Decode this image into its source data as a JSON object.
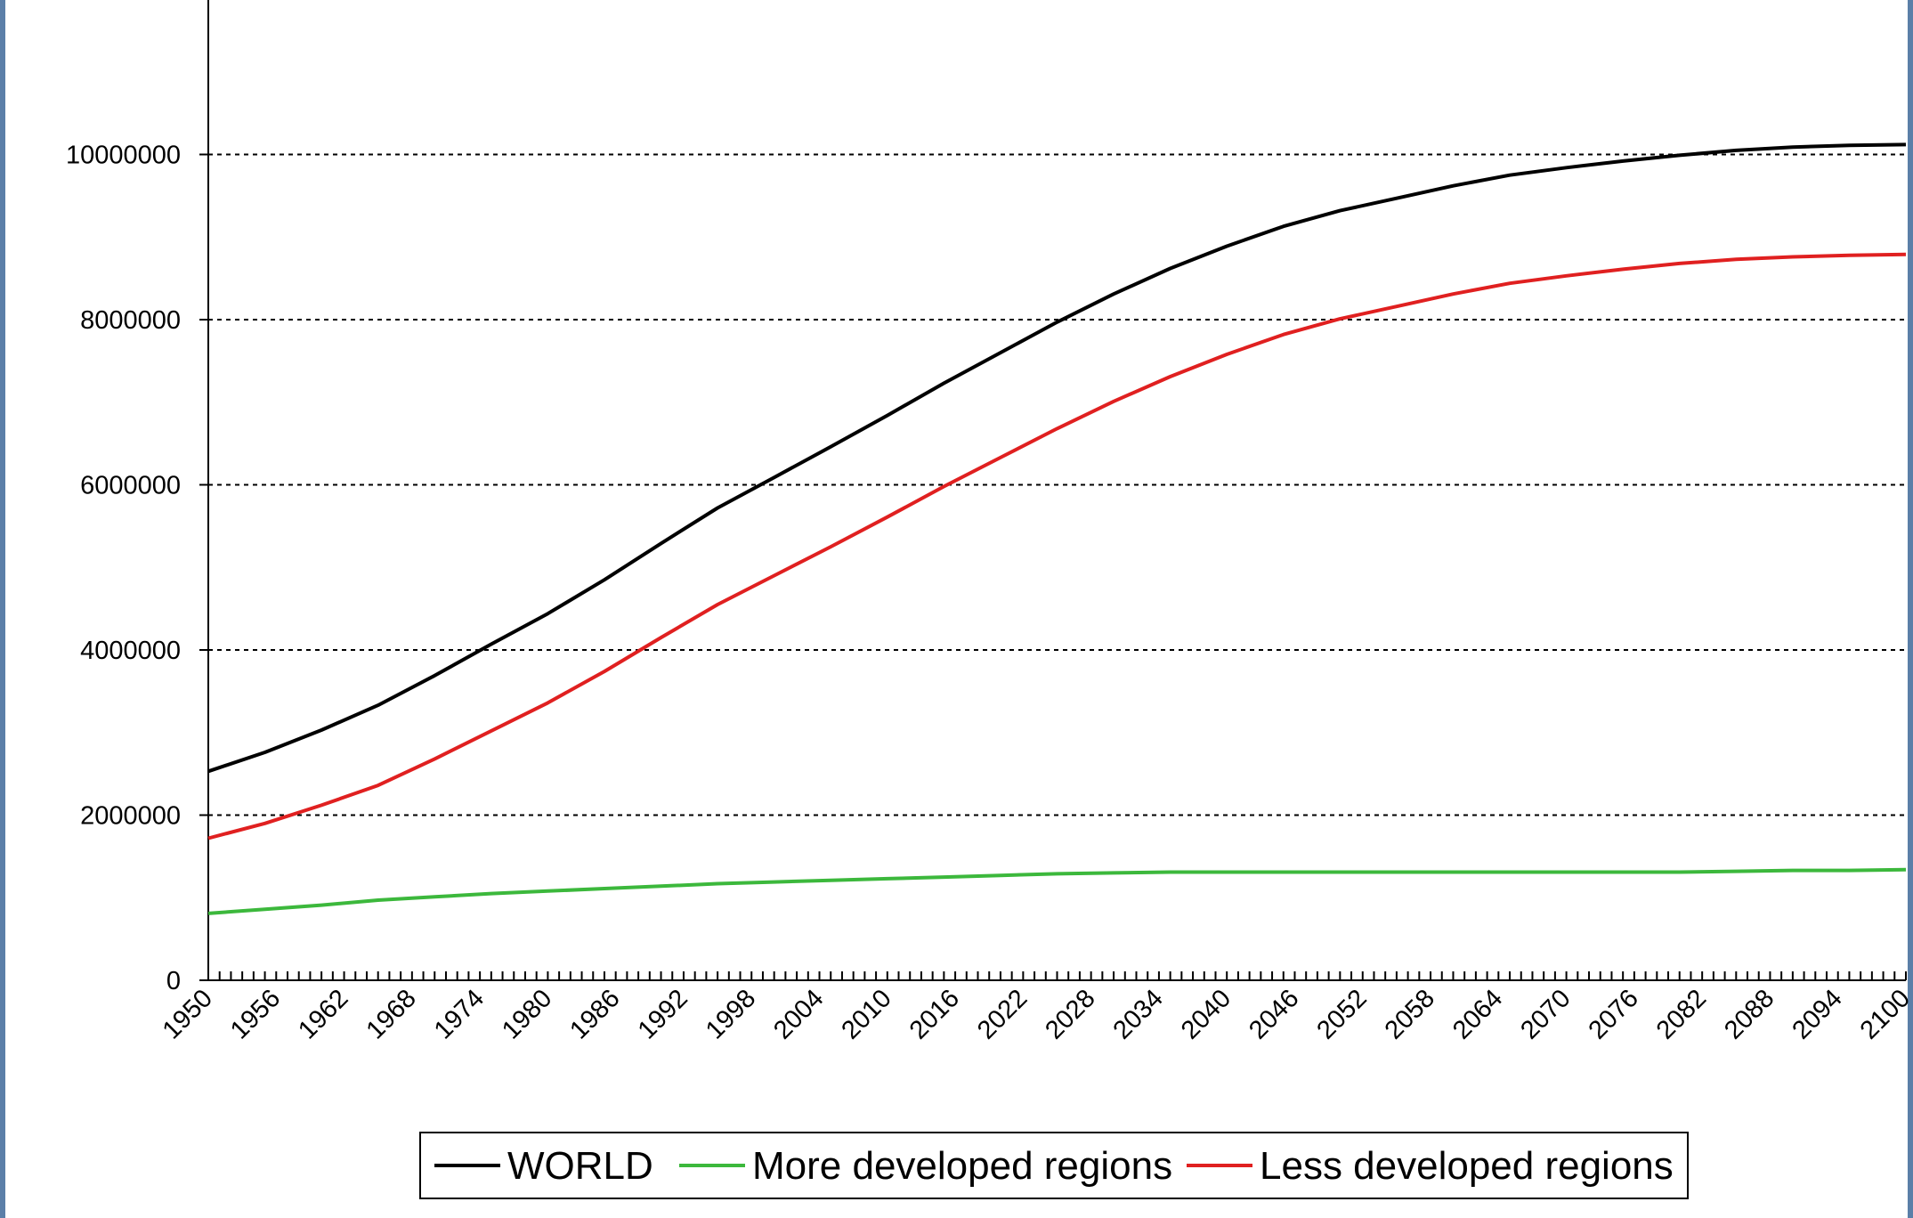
{
  "chart_data": {
    "type": "line",
    "title": "",
    "xlabel": "",
    "ylabel": "",
    "ylim": [
      0,
      12000000
    ],
    "xlim": [
      1950,
      2100
    ],
    "grid": true,
    "legend_position": "bottom",
    "y_ticks": [
      "0",
      "2000000",
      "4000000",
      "6000000",
      "8000000",
      "10000000"
    ],
    "x_ticks": [
      "1950",
      "1956",
      "1962",
      "1968",
      "1974",
      "1980",
      "1986",
      "1992",
      "1998",
      "2004",
      "2010",
      "2016",
      "2022",
      "2028",
      "2034",
      "2040",
      "2046",
      "2052",
      "2058",
      "2064",
      "2070",
      "2076",
      "2082",
      "2088",
      "2094",
      "2100"
    ],
    "x": [
      1950,
      1955,
      1960,
      1965,
      1970,
      1975,
      1980,
      1985,
      1990,
      1995,
      2000,
      2005,
      2010,
      2015,
      2020,
      2025,
      2030,
      2035,
      2040,
      2045,
      2050,
      2055,
      2060,
      2065,
      2070,
      2075,
      2080,
      2085,
      2090,
      2095,
      2100
    ],
    "series": [
      {
        "name": "WORLD",
        "color": "#000000",
        "values": [
          2530000,
          2760000,
          3030000,
          3330000,
          3690000,
          4070000,
          4440000,
          4850000,
          5290000,
          5720000,
          6090000,
          6460000,
          6840000,
          7230000,
          7600000,
          7970000,
          8310000,
          8620000,
          8890000,
          9130000,
          9320000,
          9470000,
          9620000,
          9750000,
          9840000,
          9920000,
          9990000,
          10050000,
          10090000,
          10110000,
          10120000
        ]
      },
      {
        "name": "More developed regions",
        "color": "#3cb83c",
        "values": [
          810000,
          860000,
          910000,
          970000,
          1010000,
          1050000,
          1080000,
          1110000,
          1140000,
          1170000,
          1190000,
          1210000,
          1230000,
          1250000,
          1270000,
          1290000,
          1300000,
          1310000,
          1310000,
          1310000,
          1310000,
          1310000,
          1310000,
          1310000,
          1310000,
          1310000,
          1310000,
          1320000,
          1330000,
          1330000,
          1340000
        ]
      },
      {
        "name": "Less developed regions",
        "color": "#e02020",
        "values": [
          1720000,
          1900000,
          2120000,
          2360000,
          2680000,
          3020000,
          3360000,
          3740000,
          4150000,
          4550000,
          4900000,
          5250000,
          5610000,
          5980000,
          6330000,
          6680000,
          7010000,
          7310000,
          7580000,
          7820000,
          8010000,
          8160000,
          8310000,
          8440000,
          8530000,
          8610000,
          8680000,
          8730000,
          8760000,
          8780000,
          8790000
        ]
      }
    ]
  }
}
